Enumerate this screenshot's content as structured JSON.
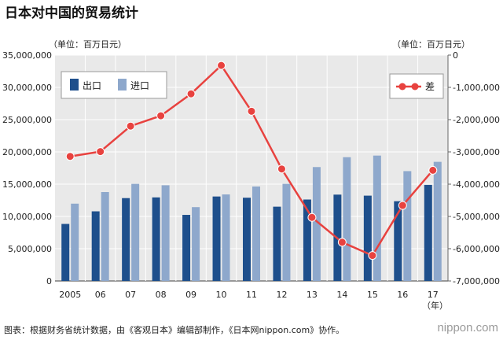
{
  "title": "日本对中国的贸易统计",
  "unit_left": "（单位：百万日元）",
  "unit_right": "（单位：百万日元）",
  "year_unit": "（年）",
  "source": "图表：根据财务省统计数据，由《客观日本》编辑部制作，《日本网nippon.com》协作。",
  "logo": "nippon.com",
  "chart_data": {
    "type": "bar+line",
    "categories": [
      "2005",
      "06",
      "07",
      "08",
      "09",
      "10",
      "11",
      "12",
      "13",
      "14",
      "15",
      "16",
      "17"
    ],
    "series": [
      {
        "name": "出口",
        "type": "bar",
        "axis": "left",
        "color": "#1e4f8c",
        "values": [
          8840000,
          10790000,
          12840000,
          12950000,
          10240000,
          13090000,
          12900000,
          11510000,
          12620000,
          13380000,
          13220000,
          12360000,
          14890000
        ]
      },
      {
        "name": "进口",
        "type": "bar",
        "axis": "left",
        "color": "#8ea8cc",
        "values": [
          11980000,
          13780000,
          15040000,
          14830000,
          11440000,
          13410000,
          14640000,
          15040000,
          17650000,
          19180000,
          19430000,
          17020000,
          18460000
        ]
      },
      {
        "name": "差",
        "type": "line",
        "axis": "right",
        "color": "#e8423f",
        "values": [
          -3140000,
          -2990000,
          -2200000,
          -1880000,
          -1200000,
          -320000,
          -1740000,
          -3530000,
          -5030000,
          -5800000,
          -6210000,
          -4660000,
          -3570000
        ]
      }
    ],
    "left_axis": {
      "min": 0,
      "max": 35000000,
      "ticks": [
        "0",
        "5,000,000",
        "10,000,000",
        "15,000,000",
        "20,000,000",
        "25,000,000",
        "30,000,000",
        "35,000,000"
      ]
    },
    "right_axis": {
      "min": -7000000,
      "max": 0,
      "ticks": [
        "-7,000,000",
        "-6,000,000",
        "-5,000,000",
        "-4,000,000",
        "-3,000,000",
        "-2,000,000",
        "-1,000,000",
        "0"
      ]
    },
    "legend_left": [
      "出口",
      "进口"
    ],
    "legend_right": [
      "差"
    ]
  }
}
